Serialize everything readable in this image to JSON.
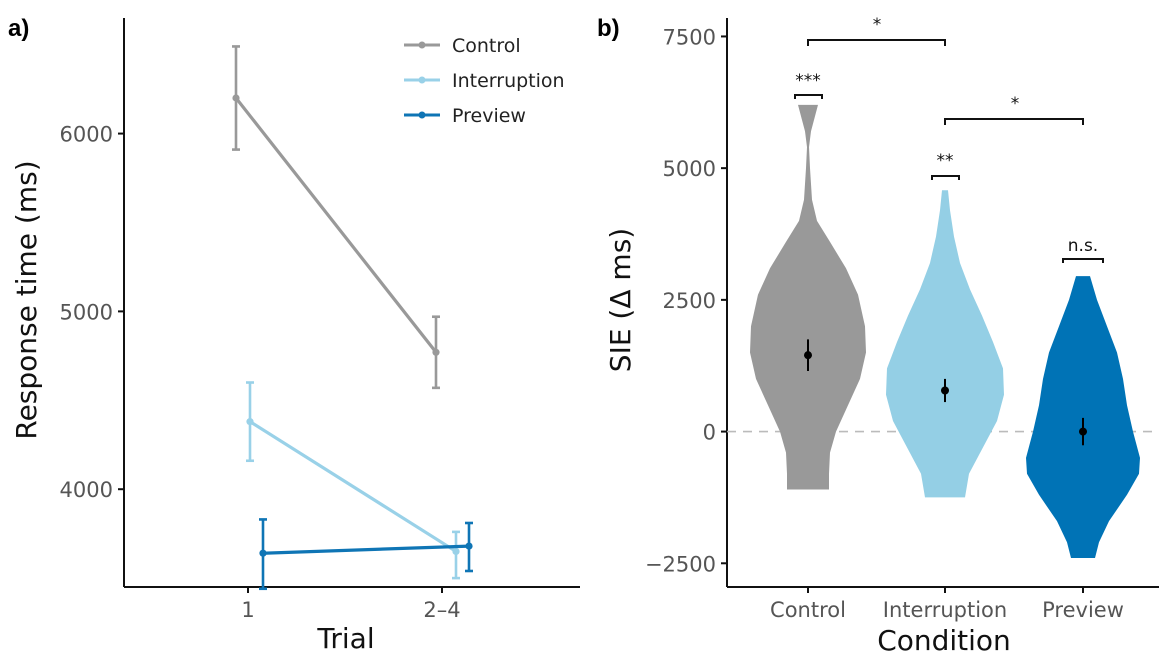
{
  "chart_data": [
    {
      "panel_label": "a)",
      "type": "line",
      "xlabel": "Trial",
      "ylabel": "Response time (ms)",
      "categories": [
        "1",
        "2–4"
      ],
      "yticks": [
        "4000",
        "5000",
        "6000"
      ],
      "ylim": [
        3450,
        6650
      ],
      "legend_position": "top-right",
      "series": [
        {
          "name": "Control",
          "color": "#999999",
          "values": [
            6200,
            4770
          ],
          "err_low": [
            5910,
            4570
          ],
          "err_high": [
            6490,
            4970
          ]
        },
        {
          "name": "Interruption",
          "color": "#99d1e8",
          "values": [
            4380,
            3650
          ],
          "err_low": [
            4160,
            3500
          ],
          "err_high": [
            4600,
            3760
          ]
        },
        {
          "name": "Preview",
          "color": "#0f75b5",
          "values": [
            3640,
            3680
          ],
          "err_low": [
            3440,
            3540
          ],
          "err_high": [
            3830,
            3810
          ]
        }
      ]
    },
    {
      "panel_label": "b)",
      "type": "violin",
      "xlabel": "Condition",
      "ylabel": "SIE (Δ ms)",
      "yticks": [
        "-2500",
        "0",
        "2500",
        "5000",
        "7500"
      ],
      "ylim": [
        -2950,
        7850
      ],
      "reference_line": 0,
      "categories": [
        "Control",
        "Interruption",
        "Preview"
      ],
      "colors": [
        "#999999",
        "#94cfe5",
        "#0073b6"
      ],
      "means": [
        1450,
        780,
        0
      ],
      "err_low": [
        1150,
        560,
        -260
      ],
      "err_high": [
        1750,
        1000,
        260
      ],
      "ranges": [
        [
          -1100,
          6200
        ],
        [
          -1250,
          4580
        ],
        [
          -2400,
          2950
        ]
      ],
      "within_labels": [
        "***",
        "**",
        "n.s."
      ],
      "between_comparisons": [
        {
          "from": "Control",
          "to": "Interruption",
          "label": "*"
        },
        {
          "from": "Interruption",
          "to": "Preview",
          "label": "*"
        }
      ]
    }
  ]
}
